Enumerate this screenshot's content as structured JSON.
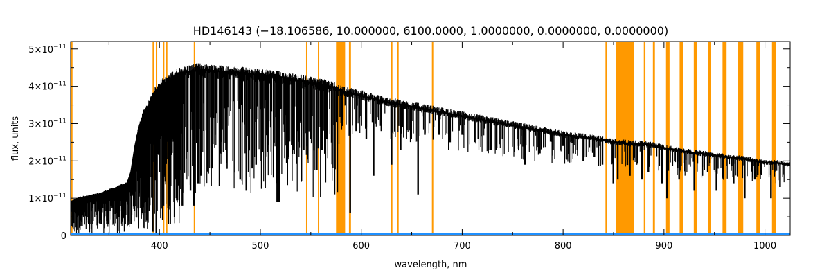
{
  "chart_data": {
    "type": "line",
    "title": "HD146143   (−18.106586, 10.000000, 6100.0000, 1.0000000, 0.0000000, 0.0000000)",
    "xlabel": "wavelength, nm",
    "ylabel": "flux, units",
    "xlim": [
      312,
      1025
    ],
    "ylim": [
      0,
      5.2e-11
    ],
    "grid": false,
    "x_ticks": [
      {
        "value": 400,
        "label": "400"
      },
      {
        "value": 500,
        "label": "500"
      },
      {
        "value": 600,
        "label": "600"
      },
      {
        "value": 700,
        "label": "700"
      },
      {
        "value": 800,
        "label": "800"
      },
      {
        "value": 900,
        "label": "900"
      },
      {
        "value": 1000,
        "label": "1000"
      }
    ],
    "y_ticks": [
      {
        "value": 0,
        "base": "0",
        "exp": ""
      },
      {
        "value": 1e-11,
        "base": "1×10",
        "exp": "−11"
      },
      {
        "value": 2e-11,
        "base": "2×10",
        "exp": "−11"
      },
      {
        "value": 3e-11,
        "base": "3×10",
        "exp": "−11"
      },
      {
        "value": 4e-11,
        "base": "4×10",
        "exp": "−11"
      },
      {
        "value": 5e-11,
        "base": "5×10",
        "exp": "−11"
      }
    ],
    "colors": {
      "spectrum": "#000000",
      "masked_regions": "#ff9900",
      "error_line": "#1e90ff"
    },
    "masked_regions": [
      [
        312.5,
        313.5
      ],
      [
        393.2,
        394.6
      ],
      [
        396.4,
        397.8
      ],
      [
        403.5,
        404.8
      ],
      [
        406.5,
        407.6
      ],
      [
        434.0,
        435.5
      ],
      [
        545.3,
        546.6
      ],
      [
        557.0,
        558.3
      ],
      [
        575.0,
        584.0
      ],
      [
        587.8,
        589.8
      ],
      [
        629.5,
        630.8
      ],
      [
        635.7,
        637.0
      ],
      [
        670.0,
        671.3
      ],
      [
        842.0,
        843.6
      ],
      [
        852.5,
        870.0
      ],
      [
        880.0,
        881.6
      ],
      [
        889.0,
        891.0
      ],
      [
        902.0,
        905.5
      ],
      [
        915.5,
        918.8
      ],
      [
        929.5,
        932.8
      ],
      [
        943.5,
        946.5
      ],
      [
        958.0,
        962.0
      ],
      [
        973.0,
        978.5
      ],
      [
        991.5,
        995.0
      ],
      [
        1007.0,
        1011.0
      ]
    ],
    "series": [
      {
        "style": "continuum",
        "x": [
          313,
          320,
          330,
          340,
          350,
          360,
          368,
          372,
          376,
          380,
          385,
          390,
          394,
          398,
          402,
          406,
          410,
          420,
          430,
          440,
          460,
          480,
          500,
          520,
          540,
          560,
          575,
          582,
          600,
          620,
          650,
          680,
          700,
          750,
          800,
          830,
          850,
          870,
          880,
          900,
          920,
          950,
          980,
          1000,
          1010,
          1025
        ],
        "y": [
          9e-12,
          1e-11,
          1.05e-11,
          1.1e-11,
          1.2e-11,
          1.3e-11,
          1.38e-11,
          1.7e-11,
          2.4e-11,
          2.9e-11,
          3.3e-11,
          3.5e-11,
          3.8e-11,
          3.9e-11,
          4.05e-11,
          4.1e-11,
          4.2e-11,
          4.35e-11,
          4.4e-11,
          4.45e-11,
          4.4e-11,
          4.35e-11,
          4.3e-11,
          4.25e-11,
          4.15e-11,
          4.05e-11,
          3.95e-11,
          3.85e-11,
          3.75e-11,
          3.6e-11,
          3.45e-11,
          3.3e-11,
          3.2e-11,
          2.95e-11,
          2.7e-11,
          2.6e-11,
          2.5e-11,
          2.45e-11,
          2.45e-11,
          2.35e-11,
          2.25e-11,
          2.15e-11,
          2.05e-11,
          1.95e-11,
          1.95e-11,
          1.9e-11
        ]
      },
      {
        "style": "absorption_lines",
        "x": [
          348,
          360,
          372,
          383,
          388,
          393.4,
          396.9,
          404,
          410.2,
          416,
          422.7,
          430.8,
          434.0,
          438.4,
          441,
          452,
          466,
          480,
          486.1,
          492,
          495.8,
          501,
          516.7,
          518.4,
          527,
          532.8,
          537,
          543,
          550,
          561,
          566,
          589.0,
          595,
          605,
          612.2,
          620,
          630,
          639,
          645,
          649.5,
          656.3,
          663,
          677,
          688,
          700,
          716,
          729,
          740,
          756,
          762,
          777,
          790,
          800,
          810,
          820,
          831,
          839,
          849.8,
          854.2,
          866.2,
          878,
          884.5,
          898,
          903,
          915,
          930,
          938,
          952,
          969,
          980,
          990,
          1006,
          1015
        ],
        "y": [
          3e-12,
          5e-12,
          3e-12,
          6e-12,
          4e-12,
          1e-12,
          5e-13,
          8e-12,
          8e-12,
          1.5e-11,
          8e-12,
          1.2e-11,
          8e-12,
          1.4e-11,
          1.6e-11,
          1.8e-11,
          2.3e-11,
          1.5e-11,
          1.2e-11,
          1.8e-11,
          1.9e-11,
          2e-11,
          9e-12,
          9e-12,
          2.1e-11,
          2.3e-11,
          2.8e-11,
          2.3e-11,
          2.6e-11,
          2.3e-11,
          2.6e-11,
          6e-12,
          2.8e-11,
          2.6e-11,
          1.6e-11,
          2.8e-11,
          1.9e-11,
          2.3e-11,
          2.9e-11,
          2.6e-11,
          1.1e-11,
          2.7e-11,
          2.7e-11,
          2.5e-11,
          2.7e-11,
          2.6e-11,
          2.3e-11,
          2.6e-11,
          2.4e-11,
          1.9e-11,
          2.2e-11,
          2.3e-11,
          2.4e-11,
          2.2e-11,
          2e-11,
          2.1e-11,
          1.9e-11,
          1.4e-11,
          1.5e-11,
          1.6e-11,
          1.5e-11,
          1.7e-11,
          1.4e-11,
          1e-11,
          1.5e-11,
          1.2e-11,
          1.6e-11,
          1.2e-11,
          1.4e-11,
          1e-11,
          1.5e-11,
          1e-11,
          1.3e-11
        ]
      },
      {
        "style": "error",
        "x": [
          312,
          1025
        ],
        "y": [
          2e-13,
          2e-13
        ]
      }
    ]
  }
}
